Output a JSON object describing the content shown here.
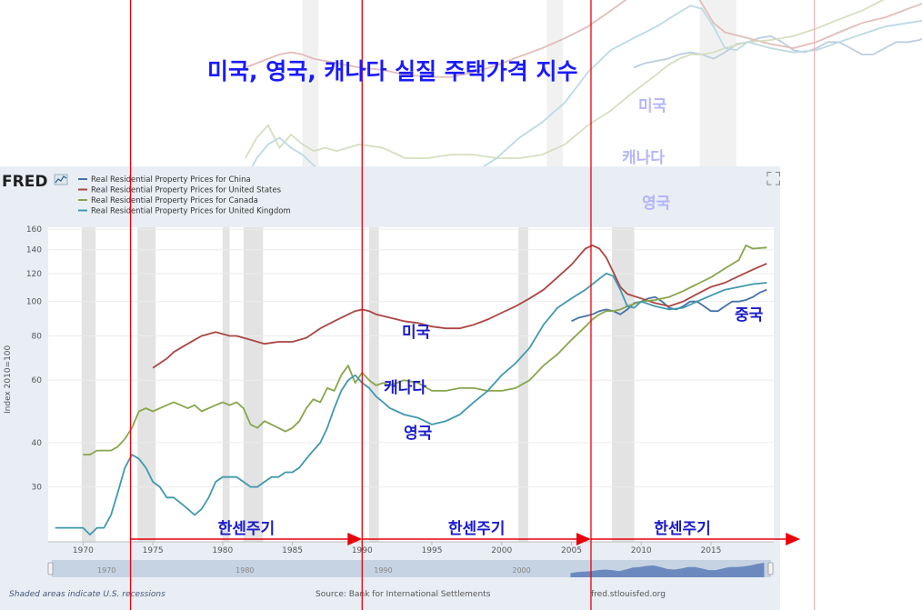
{
  "title": "미국, 영국, 캐나다 실질 주택가격 지수",
  "fred": {
    "logo": "FRED",
    "legend": [
      {
        "label": "Real Residential Property Prices for China",
        "color": "#4572a7"
      },
      {
        "label": "Real Residential Property Prices for United States",
        "color": "#aa4643"
      },
      {
        "label": "Real Residential Property Prices for Canada",
        "color": "#89a54e"
      },
      {
        "label": "Real Residential Property Prices for United Kingdom",
        "color": "#4198af"
      }
    ],
    "ylabel": "Index 2010=100",
    "recession_note": "Shaded areas indicate U.S. recessions",
    "source": "Source: Bank for International Settlements",
    "site": "fred.stlouisfed.org",
    "navigator_labels": [
      "1970",
      "1980",
      "1990",
      "2000"
    ]
  },
  "annotations": {
    "country_labels": {
      "us": "미국",
      "canada": "캐나다",
      "uk": "영국",
      "china": "중국"
    },
    "cycle_label": "한센주기"
  },
  "colors": {
    "title": "#1a1aff",
    "annotation_text": "#1a1acc",
    "cycle_line": "#e8000b",
    "recession": "#e3e3e3",
    "panel_bg": "#e9eef4",
    "plot_bg": "#ffffff",
    "navigator": "#c6d3e2",
    "navigator_series": "#6685bd"
  },
  "chart_data": {
    "type": "line",
    "title": "",
    "xlabel": "",
    "ylabel": "Index 2010=100",
    "log_scale": true,
    "xlim": [
      1967.5,
      2019.5
    ],
    "ylim": [
      21,
      162
    ],
    "yticks": [
      30,
      40,
      60,
      80,
      100,
      120,
      140,
      160
    ],
    "xticks": [
      1970,
      1975,
      1980,
      1985,
      1990,
      1995,
      2000,
      2005,
      2010,
      2015
    ],
    "recessions": [
      [
        1969.9,
        1970.9
      ],
      [
        1973.9,
        1975.2
      ],
      [
        1980.0,
        1980.5
      ],
      [
        1981.5,
        1982.9
      ],
      [
        1990.5,
        1991.2
      ],
      [
        2001.2,
        2001.9
      ],
      [
        2007.9,
        2009.5
      ]
    ],
    "cycle_markers": [
      1973.4,
      1990.0,
      2006.4
    ],
    "cycle_arrows": [
      [
        1973.4,
        1990.0
      ],
      [
        1990.0,
        2006.4
      ],
      [
        2006.4,
        2021.4
      ]
    ],
    "series": [
      {
        "name": "Real Residential Property Prices for China",
        "key": "china",
        "color": "#4572a7",
        "x": [
          2005.0,
          2005.5,
          2006.0,
          2006.5,
          2007.0,
          2007.5,
          2008.0,
          2008.5,
          2009.0,
          2009.5,
          2010.0,
          2010.5,
          2011.0,
          2011.5,
          2012.0,
          2012.5,
          2013.0,
          2013.5,
          2014.0,
          2014.5,
          2015.0,
          2015.5,
          2016.0,
          2016.5,
          2017.0,
          2017.5,
          2018.0,
          2018.5,
          2019.0
        ],
        "y": [
          88,
          90,
          91,
          92,
          94,
          95,
          94,
          92,
          95,
          99,
          100,
          102,
          103,
          100,
          96,
          95,
          97,
          100,
          100,
          97,
          94,
          94,
          97,
          100,
          100,
          101,
          103,
          106,
          108
        ]
      },
      {
        "name": "Real Residential Property Prices for United States",
        "key": "us",
        "color": "#aa4643",
        "x": [
          1975.0,
          1975.5,
          1976.0,
          1976.5,
          1977.0,
          1977.5,
          1978.0,
          1978.5,
          1979.0,
          1979.5,
          1980.0,
          1980.5,
          1981.0,
          1981.5,
          1982.0,
          1982.5,
          1983.0,
          1984.0,
          1985.0,
          1986.0,
          1987.0,
          1988.0,
          1989.0,
          1989.5,
          1990.0,
          1990.5,
          1991.0,
          1992.0,
          1993.0,
          1994.0,
          1995.0,
          1996.0,
          1997.0,
          1998.0,
          1999.0,
          2000.0,
          2001.0,
          2002.0,
          2003.0,
          2004.0,
          2005.0,
          2006.0,
          2006.5,
          2007.0,
          2007.5,
          2008.0,
          2008.5,
          2009.0,
          2010.0,
          2011.0,
          2012.0,
          2013.0,
          2014.0,
          2015.0,
          2016.0,
          2017.0,
          2018.0,
          2019.0
        ],
        "y": [
          65,
          67,
          69,
          72,
          74,
          76,
          78,
          80,
          81,
          82,
          81,
          80,
          80,
          79,
          78,
          77,
          76,
          77,
          77,
          79,
          84,
          88,
          92,
          94,
          95,
          94,
          92,
          90,
          88,
          87,
          85,
          84,
          84,
          86,
          89,
          93,
          97,
          102,
          108,
          117,
          127,
          141,
          144,
          141,
          133,
          121,
          110,
          105,
          102,
          99,
          97,
          100,
          105,
          110,
          113,
          118,
          123,
          128
        ]
      },
      {
        "name": "Real Residential Property Prices for Canada",
        "key": "canada",
        "color": "#89a54e",
        "x": [
          1970.0,
          1970.5,
          1971.0,
          1971.5,
          1972.0,
          1972.5,
          1973.0,
          1973.5,
          1974.0,
          1974.5,
          1975.0,
          1975.5,
          1976.0,
          1976.5,
          1977.0,
          1977.5,
          1978.0,
          1978.5,
          1979.0,
          1979.5,
          1980.0,
          1980.5,
          1981.0,
          1981.5,
          1982.0,
          1982.5,
          1983.0,
          1983.5,
          1984.0,
          1984.5,
          1985.0,
          1985.5,
          1986.0,
          1986.5,
          1987.0,
          1987.5,
          1988.0,
          1988.5,
          1989.0,
          1989.5,
          1990.0,
          1990.5,
          1991.0,
          1991.5,
          1992.0,
          1993.0,
          1994.0,
          1995.0,
          1996.0,
          1997.0,
          1998.0,
          1999.0,
          2000.0,
          2001.0,
          2002.0,
          2003.0,
          2004.0,
          2005.0,
          2006.0,
          2006.5,
          2007.0,
          2007.5,
          2008.0,
          2008.5,
          2009.0,
          2010.0,
          2011.0,
          2012.0,
          2013.0,
          2014.0,
          2015.0,
          2016.0,
          2017.0,
          2017.5,
          2018.0,
          2019.0
        ],
        "y": [
          37,
          37,
          38,
          38,
          38,
          39,
          41,
          44,
          49,
          50,
          49,
          50,
          51,
          52,
          51,
          50,
          51,
          49,
          50,
          51,
          52,
          51,
          52,
          50,
          45,
          44,
          46,
          45,
          44,
          43,
          44,
          46,
          50,
          53,
          52,
          57,
          56,
          62,
          66,
          59,
          63,
          60,
          58,
          59,
          58,
          60,
          59,
          56,
          56,
          57,
          57,
          56,
          56,
          57,
          60,
          66,
          71,
          78,
          85,
          89,
          92,
          94,
          94,
          95,
          97,
          100,
          101,
          103,
          107,
          112,
          117,
          124,
          131,
          144,
          141,
          142
        ]
      },
      {
        "name": "Real Residential Property Prices for United Kingdom",
        "key": "uk",
        "color": "#4198af",
        "x": [
          1968.0,
          1968.5,
          1969.0,
          1969.5,
          1970.0,
          1970.5,
          1971.0,
          1971.5,
          1972.0,
          1972.5,
          1973.0,
          1973.5,
          1974.0,
          1974.5,
          1975.0,
          1975.5,
          1976.0,
          1976.5,
          1977.0,
          1977.5,
          1978.0,
          1978.5,
          1979.0,
          1979.5,
          1980.0,
          1980.5,
          1981.0,
          1981.5,
          1982.0,
          1982.5,
          1983.0,
          1983.5,
          1984.0,
          1984.5,
          1985.0,
          1985.5,
          1986.0,
          1986.5,
          1987.0,
          1987.5,
          1988.0,
          1988.5,
          1989.0,
          1989.5,
          1990.0,
          1990.5,
          1991.0,
          1991.5,
          1992.0,
          1992.5,
          1993.0,
          1994.0,
          1995.0,
          1996.0,
          1997.0,
          1998.0,
          1999.0,
          2000.0,
          2001.0,
          2002.0,
          2003.0,
          2004.0,
          2005.0,
          2006.0,
          2007.0,
          2007.5,
          2008.0,
          2008.5,
          2009.0,
          2009.5,
          2010.0,
          2011.0,
          2012.0,
          2013.0,
          2014.0,
          2015.0,
          2016.0,
          2017.0,
          2018.0,
          2019.0
        ],
        "y": [
          23,
          23,
          23,
          23,
          23,
          22,
          23,
          23,
          25,
          29,
          34,
          37,
          36,
          34,
          31,
          30,
          28,
          28,
          27,
          26,
          25,
          26,
          28,
          31,
          32,
          32,
          32,
          31,
          30,
          30,
          31,
          32,
          32,
          33,
          33,
          34,
          36,
          38,
          40,
          44,
          50,
          56,
          60,
          62,
          59,
          57,
          54,
          52,
          50,
          49,
          48,
          47,
          45,
          46,
          48,
          52,
          56,
          62,
          67,
          74,
          86,
          96,
          102,
          108,
          116,
          120,
          118,
          108,
          97,
          96,
          100,
          97,
          95,
          96,
          100,
          104,
          108,
          110,
          112,
          113
        ]
      }
    ]
  }
}
